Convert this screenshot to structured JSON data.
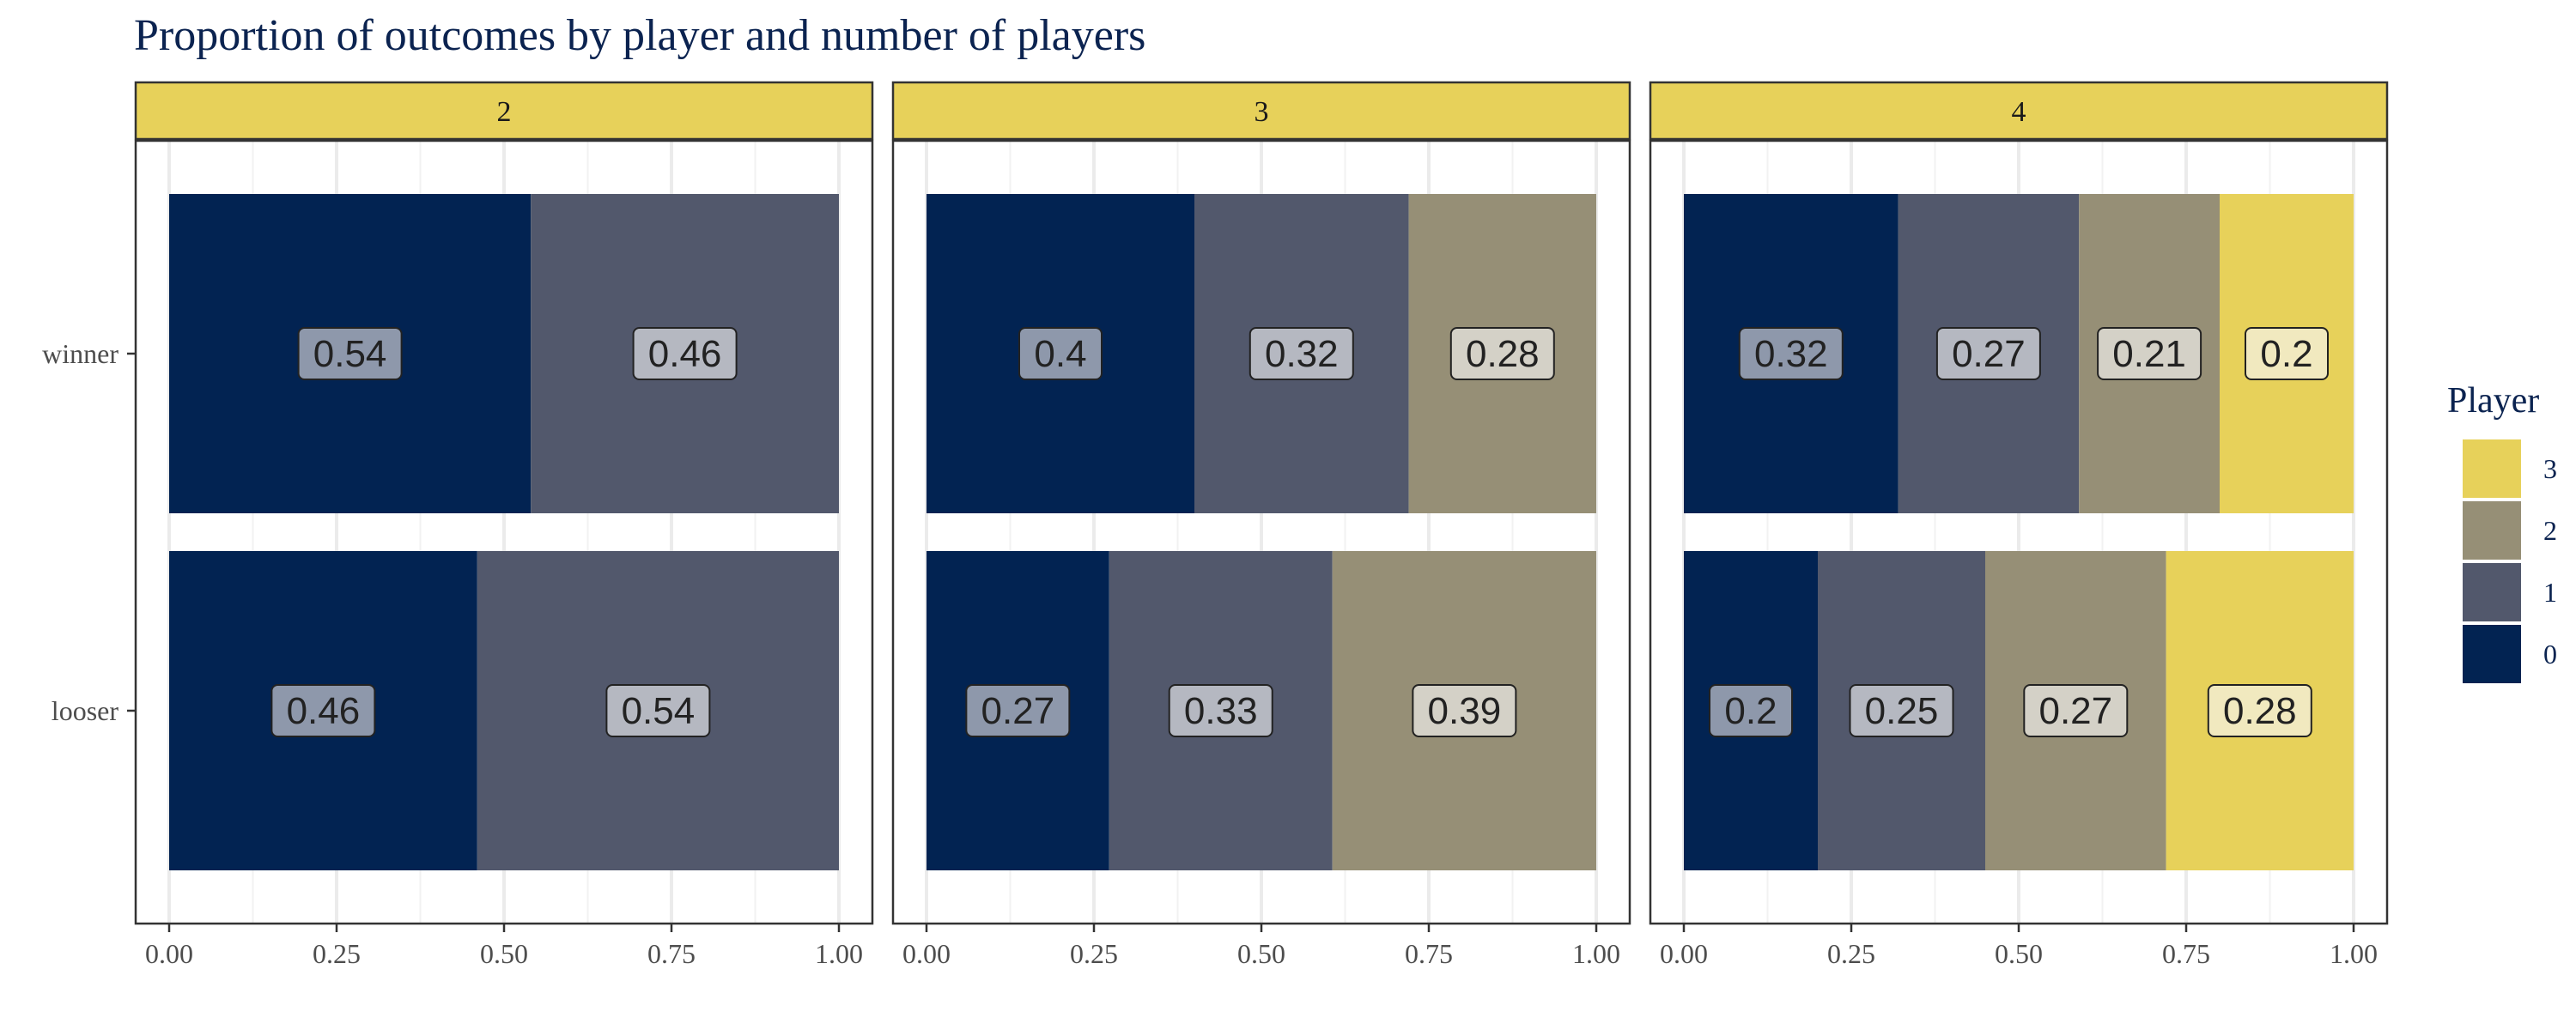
{
  "chart_data": {
    "type": "bar",
    "orientation": "horizontal",
    "stacked": true,
    "title": "Proportion of outcomes by player and number of players",
    "facets": [
      {
        "label": "2",
        "rows": [
          {
            "category": "winner",
            "segments": [
              {
                "player": "0",
                "value": 0.54,
                "label": "0.54"
              },
              {
                "player": "1",
                "value": 0.46,
                "label": "0.46"
              }
            ]
          },
          {
            "category": "looser",
            "segments": [
              {
                "player": "0",
                "value": 0.46,
                "label": "0.46"
              },
              {
                "player": "1",
                "value": 0.54,
                "label": "0.54"
              }
            ]
          }
        ]
      },
      {
        "label": "3",
        "rows": [
          {
            "category": "winner",
            "segments": [
              {
                "player": "0",
                "value": 0.4,
                "label": "0.4"
              },
              {
                "player": "1",
                "value": 0.32,
                "label": "0.32"
              },
              {
                "player": "2",
                "value": 0.28,
                "label": "0.28"
              }
            ]
          },
          {
            "category": "looser",
            "segments": [
              {
                "player": "0",
                "value": 0.27,
                "label": "0.27"
              },
              {
                "player": "1",
                "value": 0.33,
                "label": "0.33"
              },
              {
                "player": "2",
                "value": 0.39,
                "label": "0.39"
              }
            ]
          }
        ]
      },
      {
        "label": "4",
        "rows": [
          {
            "category": "winner",
            "segments": [
              {
                "player": "0",
                "value": 0.32,
                "label": "0.32"
              },
              {
                "player": "1",
                "value": 0.27,
                "label": "0.27"
              },
              {
                "player": "2",
                "value": 0.21,
                "label": "0.21"
              },
              {
                "player": "3",
                "value": 0.2,
                "label": "0.2"
              }
            ]
          },
          {
            "category": "looser",
            "segments": [
              {
                "player": "0",
                "value": 0.2,
                "label": "0.2"
              },
              {
                "player": "1",
                "value": 0.25,
                "label": "0.25"
              },
              {
                "player": "2",
                "value": 0.27,
                "label": "0.27"
              },
              {
                "player": "3",
                "value": 0.28,
                "label": "0.28"
              }
            ]
          }
        ]
      }
    ],
    "categories": [
      "winner",
      "looser"
    ],
    "x_ticks": [
      "0.00",
      "0.25",
      "0.50",
      "0.75",
      "1.00"
    ],
    "xlim": [
      0,
      1
    ],
    "xlabel": "",
    "ylabel": "",
    "grid": true,
    "legend": {
      "title": "Player",
      "position": "right",
      "entries": [
        "3",
        "2",
        "1",
        "0"
      ]
    },
    "colors": {
      "0": "#022352",
      "1": "#52586c",
      "2": "#968f76",
      "3": "#e7d15a",
      "strip": "#e7d15a"
    }
  }
}
